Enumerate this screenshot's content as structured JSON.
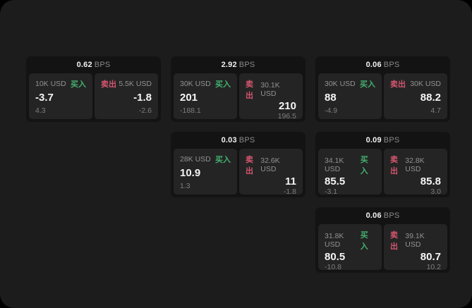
{
  "labels": {
    "bps_unit": "BPS",
    "buy": "买入",
    "sell": "卖出"
  },
  "colors": {
    "page_background": "#000000",
    "frame_background": "#1c1c1c",
    "card_background": "#131313",
    "panel_background": "#242424",
    "buy_accent": "#44b06f",
    "sell_accent": "#d4566f"
  },
  "cards": [
    {
      "bps": "0.62",
      "buy": {
        "amount": "10K USD",
        "price": "-3.7",
        "change": "4.3"
      },
      "sell": {
        "amount": "5.5K USD",
        "price": "-1.8",
        "change": "-2.6"
      }
    },
    {
      "bps": "2.92",
      "buy": {
        "amount": "30K USD",
        "price": "201",
        "change": "-188.1"
      },
      "sell": {
        "amount": "30.1K USD",
        "price": "210",
        "change": "196.5"
      }
    },
    {
      "bps": "0.06",
      "buy": {
        "amount": "30K USD",
        "price": "88",
        "change": "-4.9"
      },
      "sell": {
        "amount": "30K USD",
        "price": "88.2",
        "change": "4.7"
      }
    },
    {
      "bps": "0.03",
      "buy": {
        "amount": "28K USD",
        "price": "10.9",
        "change": "1.3"
      },
      "sell": {
        "amount": "32.6K USD",
        "price": "11",
        "change": "-1.8"
      }
    },
    {
      "bps": "0.09",
      "buy": {
        "amount": "34.1K USD",
        "price": "85.5",
        "change": "-3.1"
      },
      "sell": {
        "amount": "32.8K USD",
        "price": "85.8",
        "change": "3.0"
      }
    },
    {
      "bps": "0.06",
      "buy": {
        "amount": "31.8K USD",
        "price": "80.5",
        "change": "-10.8"
      },
      "sell": {
        "amount": "39.1K USD",
        "price": "80.7",
        "change": "10.2"
      }
    }
  ]
}
